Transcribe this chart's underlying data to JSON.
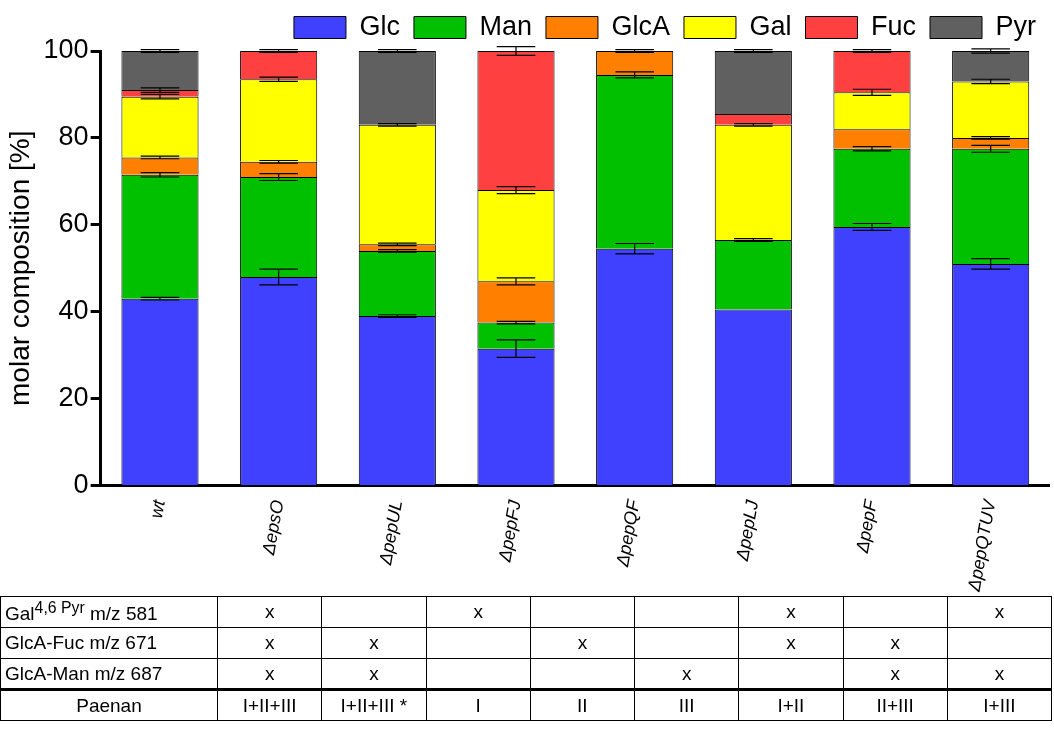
{
  "chart_data": [
    {
      "type": "bar",
      "stacked": true,
      "ylabel": "molar composition [%]",
      "legend": "top right",
      "grid": false,
      "categories": [
        "wt",
        "ΔepsO",
        "ΔpepUL",
        "ΔpepFJ",
        "ΔpepQF",
        "ΔpepLJ",
        "ΔpepF",
        "ΔpepQTUV"
      ],
      "ylim": [
        0,
        100
      ],
      "yticks": [
        0,
        20,
        40,
        60,
        80,
        100
      ],
      "series": [
        {
          "name": "Glc",
          "color": "#4040ff",
          "values": [
            43,
            48,
            39,
            31.5,
            54.5,
            40.5,
            59.5,
            51
          ],
          "errors": [
            0.3,
            1.8,
            0.3,
            2,
            1.2,
            null,
            0.8,
            1.2
          ]
        },
        {
          "name": "Man",
          "color": "#00c000",
          "values": [
            28.5,
            23,
            15,
            6,
            40,
            16,
            18,
            26.5
          ],
          "errors": [
            0.5,
            0.8,
            0.3,
            0.3,
            0.7,
            0.3,
            0.5,
            0.8
          ]
        },
        {
          "name": "GlcA",
          "color": "#ff8000",
          "values": [
            4,
            3.5,
            1.5,
            9.5,
            5.5,
            null,
            4.5,
            2.5
          ],
          "errors": [
            0.3,
            0.3,
            0.3,
            0.8,
            0.3,
            null,
            null,
            0.3
          ]
        },
        {
          "name": "Gal",
          "color": "#ffff00",
          "values": [
            14,
            19,
            27.5,
            21,
            null,
            26.5,
            8.5,
            13
          ],
          "errors": [
            0.5,
            0.5,
            0.3,
            0.8,
            null,
            0.3,
            0.7,
            0.5
          ]
        },
        {
          "name": "Fuc",
          "color": "#ff4040",
          "values": [
            1.5,
            6.5,
            null,
            32,
            null,
            2.5,
            9.5,
            null
          ],
          "errors": [
            0.5,
            0.3,
            null,
            1,
            null,
            null,
            0.3,
            null
          ]
        },
        {
          "name": "Pyr",
          "color": "#606060",
          "values": [
            9,
            null,
            17,
            null,
            null,
            14.5,
            null,
            7
          ],
          "errors": [
            0.3,
            null,
            0.3,
            null,
            null,
            0.3,
            null,
            0.5
          ]
        }
      ]
    },
    {
      "type": "other",
      "y_categories": [
        "Gal$^{4,6 Pyr}$ m/z 581",
        "GlcA-Fuc m/z 671",
        "GlcA-Man m/z 687",
        "Paenan"
      ],
      "cell_labels": [
        [
          "x",
          null,
          "x",
          null,
          null,
          "x",
          null,
          "x"
        ],
        [
          "x",
          "x",
          null,
          "x",
          null,
          "x",
          "x",
          null
        ],
        [
          "x",
          "x",
          null,
          null,
          "x",
          null,
          "x",
          "x"
        ],
        [
          "I+II+III",
          "I+II+III *",
          "I",
          "II",
          "III",
          "I+II",
          "II+III",
          "I+III"
        ]
      ]
    }
  ]
}
